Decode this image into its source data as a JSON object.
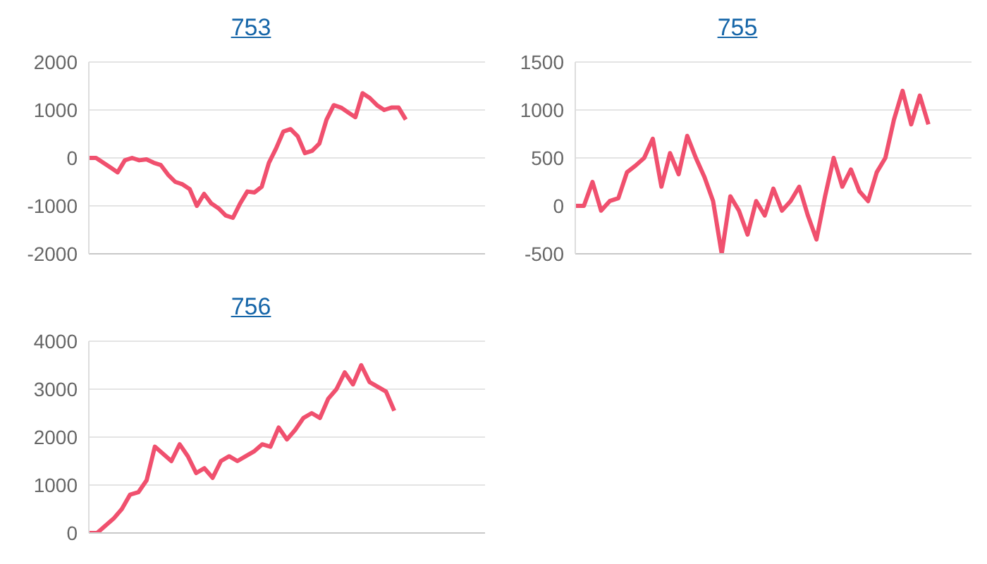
{
  "chart_data": [
    {
      "type": "line",
      "title": "753",
      "categories": [
        null,
        null,
        null,
        null,
        null,
        null,
        null,
        null,
        null,
        null,
        null,
        null,
        null,
        null,
        null,
        null,
        null,
        null,
        null,
        null,
        null,
        null,
        null,
        null,
        null,
        null,
        null,
        null,
        null,
        null,
        null,
        null,
        null,
        null,
        null,
        null,
        null,
        null,
        null,
        null,
        null,
        null,
        null,
        null,
        null,
        null,
        null,
        null,
        null,
        null,
        null,
        null,
        null,
        null,
        null,
        null
      ],
      "series": [
        {
          "color": "#f0506e",
          "values": [
            0,
            0,
            -100,
            -200,
            -300,
            -50,
            0,
            -50,
            -30,
            -100,
            -150,
            -350,
            -500,
            -550,
            -650,
            -1000,
            -750,
            -950,
            -1050,
            -1200,
            -1250,
            -950,
            -700,
            -720,
            -600,
            -100,
            200,
            550,
            600,
            450,
            100,
            150,
            300,
            800,
            1100,
            1050,
            950,
            850,
            1350,
            1250,
            1100,
            1000,
            1050,
            1050,
            800,
            null,
            null,
            null,
            null,
            null,
            null,
            null,
            null,
            null,
            null,
            null
          ]
        }
      ],
      "ylim": [
        -2000,
        2000
      ],
      "yticks": [
        -2000,
        -1000,
        0,
        1000,
        2000
      ],
      "grid": "y",
      "tick_labels": "y",
      "marker": "none"
    },
    {
      "type": "line",
      "title": "755",
      "categories": [
        null,
        null,
        null,
        null,
        null,
        null,
        null,
        null,
        null,
        null,
        null,
        null,
        null,
        null,
        null,
        null,
        null,
        null,
        null,
        null,
        null,
        null,
        null,
        null,
        null,
        null,
        null,
        null,
        null,
        null,
        null,
        null,
        null,
        null,
        null,
        null,
        null,
        null,
        null,
        null,
        null,
        null,
        null,
        null,
        null,
        null,
        null
      ],
      "series": [
        {
          "color": "#f0506e",
          "values": [
            0,
            0,
            250,
            -50,
            50,
            80,
            350,
            420,
            500,
            700,
            200,
            550,
            330,
            730,
            500,
            300,
            50,
            -500,
            100,
            -50,
            -300,
            50,
            -100,
            180,
            -50,
            50,
            200,
            -100,
            -350,
            100,
            500,
            200,
            380,
            150,
            50,
            350,
            500,
            900,
            1200,
            850,
            1150,
            850,
            null,
            null,
            null,
            null,
            null
          ]
        }
      ],
      "ylim": [
        -500,
        1500
      ],
      "yticks": [
        -500,
        0,
        500,
        1000,
        1500
      ],
      "grid": "y",
      "tick_labels": "y",
      "marker": "none"
    },
    {
      "type": "line",
      "title": "756",
      "categories": [
        null,
        null,
        null,
        null,
        null,
        null,
        null,
        null,
        null,
        null,
        null,
        null,
        null,
        null,
        null,
        null,
        null,
        null,
        null,
        null,
        null,
        null,
        null,
        null,
        null,
        null,
        null,
        null,
        null,
        null,
        null,
        null,
        null,
        null,
        null,
        null,
        null,
        null,
        null,
        null,
        null,
        null,
        null,
        null,
        null,
        null,
        null,
        null,
        null
      ],
      "series": [
        {
          "color": "#f0506e",
          "values": [
            0,
            0,
            150,
            300,
            500,
            800,
            850,
            1100,
            1800,
            1650,
            1500,
            1850,
            1600,
            1250,
            1350,
            1150,
            1500,
            1600,
            1500,
            1600,
            1700,
            1850,
            1800,
            2200,
            1950,
            2150,
            2400,
            2500,
            2400,
            2800,
            3000,
            3350,
            3100,
            3500,
            3150,
            3050,
            2950,
            2550,
            null,
            null,
            null,
            null,
            null,
            null,
            null,
            null,
            null,
            null,
            null
          ]
        }
      ],
      "ylim": [
        0,
        4000
      ],
      "yticks": [
        0,
        1000,
        2000,
        3000,
        4000
      ],
      "grid": "y",
      "tick_labels": "y",
      "marker": "none"
    }
  ]
}
